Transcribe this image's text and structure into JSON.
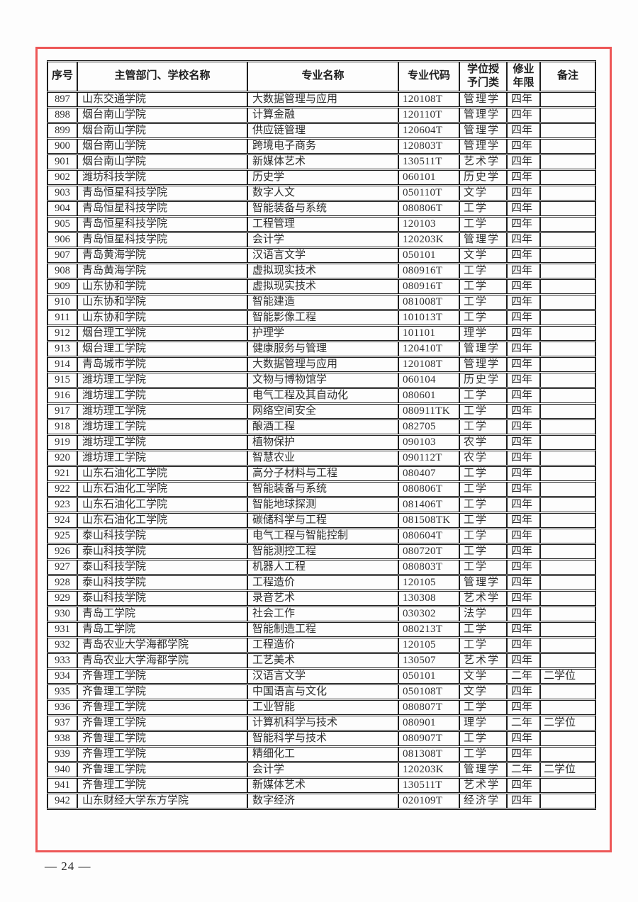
{
  "page": {
    "background_color": "#fdfdfd",
    "frame_color": "#ed5757",
    "table_line_color": "#1f1f1f",
    "text_color": "#2d2d2d",
    "page_number": "— 24 —"
  },
  "table": {
    "columns": [
      "序号",
      "主管部门、学校名称",
      "专业名称",
      "专业代码",
      "学位授\n予门类",
      "修业\n年限",
      "备注"
    ],
    "rows": [
      [
        "897",
        "山东交通学院",
        "大数据管理与应用",
        "120108T",
        "管理学",
        "四年",
        ""
      ],
      [
        "898",
        "烟台南山学院",
        "计算金融",
        "120110T",
        "管理学",
        "四年",
        ""
      ],
      [
        "899",
        "烟台南山学院",
        "供应链管理",
        "120604T",
        "管理学",
        "四年",
        ""
      ],
      [
        "900",
        "烟台南山学院",
        "跨境电子商务",
        "120803T",
        "管理学",
        "四年",
        ""
      ],
      [
        "901",
        "烟台南山学院",
        "新媒体艺术",
        "130511T",
        "艺术学",
        "四年",
        ""
      ],
      [
        "902",
        "潍坊科技学院",
        "历史学",
        "060101",
        "历史学",
        "四年",
        ""
      ],
      [
        "903",
        "青岛恒星科技学院",
        "数字人文",
        "050110T",
        "文学",
        "四年",
        ""
      ],
      [
        "904",
        "青岛恒星科技学院",
        "智能装备与系统",
        "080806T",
        "工学",
        "四年",
        ""
      ],
      [
        "905",
        "青岛恒星科技学院",
        "工程管理",
        "120103",
        "工学",
        "四年",
        ""
      ],
      [
        "906",
        "青岛恒星科技学院",
        "会计学",
        "120203K",
        "管理学",
        "四年",
        ""
      ],
      [
        "907",
        "青岛黄海学院",
        "汉语言文学",
        "050101",
        "文学",
        "四年",
        ""
      ],
      [
        "908",
        "青岛黄海学院",
        "虚拟现实技术",
        "080916T",
        "工学",
        "四年",
        ""
      ],
      [
        "909",
        "山东协和学院",
        "虚拟现实技术",
        "080916T",
        "工学",
        "四年",
        ""
      ],
      [
        "910",
        "山东协和学院",
        "智能建造",
        "081008T",
        "工学",
        "四年",
        ""
      ],
      [
        "911",
        "山东协和学院",
        "智能影像工程",
        "101013T",
        "工学",
        "四年",
        ""
      ],
      [
        "912",
        "烟台理工学院",
        "护理学",
        "101101",
        "理学",
        "四年",
        ""
      ],
      [
        "913",
        "烟台理工学院",
        "健康服务与管理",
        "120410T",
        "管理学",
        "四年",
        ""
      ],
      [
        "914",
        "青岛城市学院",
        "大数据管理与应用",
        "120108T",
        "管理学",
        "四年",
        ""
      ],
      [
        "915",
        "潍坊理工学院",
        "文物与博物馆学",
        "060104",
        "历史学",
        "四年",
        ""
      ],
      [
        "916",
        "潍坊理工学院",
        "电气工程及其自动化",
        "080601",
        "工学",
        "四年",
        ""
      ],
      [
        "917",
        "潍坊理工学院",
        "网络空间安全",
        "080911TK",
        "工学",
        "四年",
        ""
      ],
      [
        "918",
        "潍坊理工学院",
        "酿酒工程",
        "082705",
        "工学",
        "四年",
        ""
      ],
      [
        "919",
        "潍坊理工学院",
        "植物保护",
        "090103",
        "农学",
        "四年",
        ""
      ],
      [
        "920",
        "潍坊理工学院",
        "智慧农业",
        "090112T",
        "农学",
        "四年",
        ""
      ],
      [
        "921",
        "山东石油化工学院",
        "高分子材料与工程",
        "080407",
        "工学",
        "四年",
        ""
      ],
      [
        "922",
        "山东石油化工学院",
        "智能装备与系统",
        "080806T",
        "工学",
        "四年",
        ""
      ],
      [
        "923",
        "山东石油化工学院",
        "智能地球探测",
        "081406T",
        "工学",
        "四年",
        ""
      ],
      [
        "924",
        "山东石油化工学院",
        "碳储科学与工程",
        "081508TK",
        "工学",
        "四年",
        ""
      ],
      [
        "925",
        "泰山科技学院",
        "电气工程与智能控制",
        "080604T",
        "工学",
        "四年",
        ""
      ],
      [
        "926",
        "泰山科技学院",
        "智能测控工程",
        "080720T",
        "工学",
        "四年",
        ""
      ],
      [
        "927",
        "泰山科技学院",
        "机器人工程",
        "080803T",
        "工学",
        "四年",
        ""
      ],
      [
        "928",
        "泰山科技学院",
        "工程造价",
        "120105",
        "管理学",
        "四年",
        ""
      ],
      [
        "929",
        "泰山科技学院",
        "录音艺术",
        "130308",
        "艺术学",
        "四年",
        ""
      ],
      [
        "930",
        "青岛工学院",
        "社会工作",
        "030302",
        "法学",
        "四年",
        ""
      ],
      [
        "931",
        "青岛工学院",
        "智能制造工程",
        "080213T",
        "工学",
        "四年",
        ""
      ],
      [
        "932",
        "青岛农业大学海都学院",
        "工程造价",
        "120105",
        "工学",
        "四年",
        ""
      ],
      [
        "933",
        "青岛农业大学海都学院",
        "工艺美术",
        "130507",
        "艺术学",
        "四年",
        ""
      ],
      [
        "934",
        "齐鲁理工学院",
        "汉语言文学",
        "050101",
        "文学",
        "二年",
        "二学位"
      ],
      [
        "935",
        "齐鲁理工学院",
        "中国语言与文化",
        "050108T",
        "文学",
        "四年",
        ""
      ],
      [
        "936",
        "齐鲁理工学院",
        "工业智能",
        "080807T",
        "工学",
        "四年",
        ""
      ],
      [
        "937",
        "齐鲁理工学院",
        "计算机科学与技术",
        "080901",
        "理学",
        "二年",
        "二学位"
      ],
      [
        "938",
        "齐鲁理工学院",
        "智能科学与技术",
        "080907T",
        "工学",
        "四年",
        ""
      ],
      [
        "939",
        "齐鲁理工学院",
        "精细化工",
        "081308T",
        "工学",
        "四年",
        ""
      ],
      [
        "940",
        "齐鲁理工学院",
        "会计学",
        "120203K",
        "管理学",
        "二年",
        "二学位"
      ],
      [
        "941",
        "齐鲁理工学院",
        "新媒体艺术",
        "130511T",
        "艺术学",
        "四年",
        ""
      ],
      [
        "942",
        "山东财经大学东方学院",
        "数字经济",
        "020109T",
        "经济学",
        "四年",
        ""
      ]
    ]
  }
}
